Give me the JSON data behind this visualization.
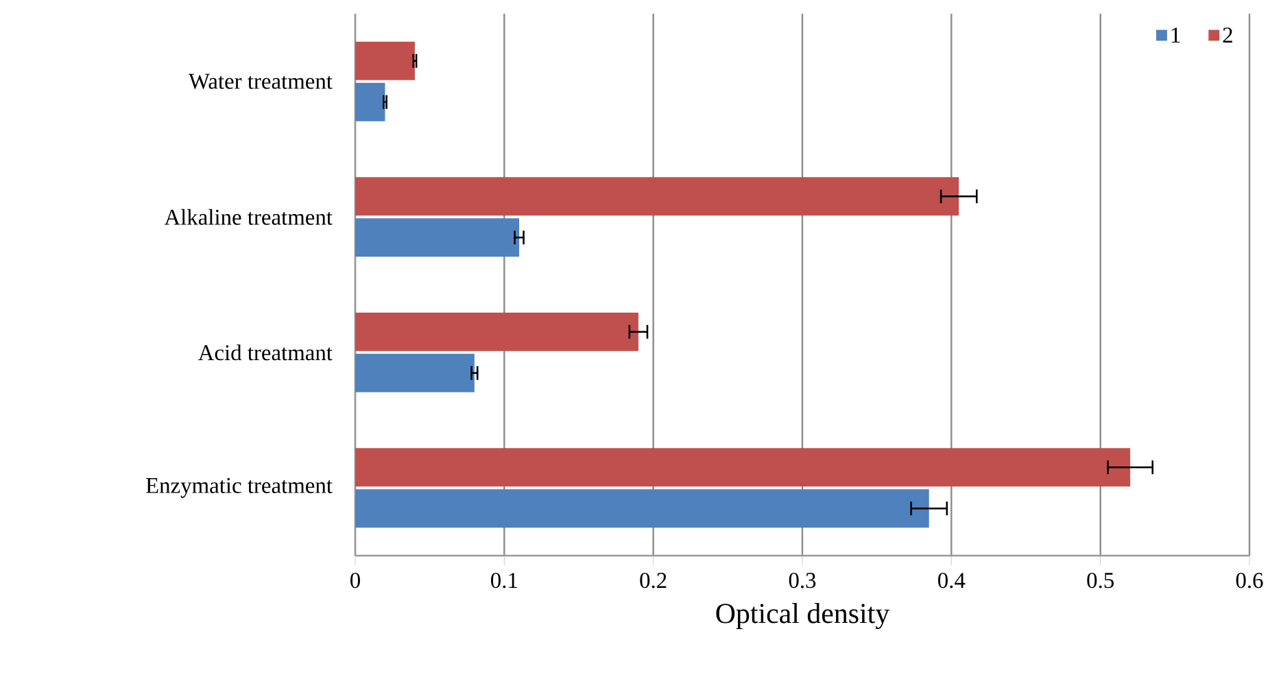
{
  "chart_data": {
    "type": "bar",
    "orientation": "horizontal",
    "xlabel": "Optical density",
    "categories": [
      "Water treatment",
      "Alkaline treatment",
      "Acid treatmant",
      "Enzymatic treatment"
    ],
    "series": [
      {
        "name": "1",
        "color": "#4f81bd",
        "values": [
          0.02,
          0.11,
          0.08,
          0.385
        ],
        "errors": [
          0.001,
          0.003,
          0.002,
          0.012
        ]
      },
      {
        "name": "2",
        "color": "#c0504d",
        "values": [
          0.04,
          0.405,
          0.19,
          0.52
        ],
        "errors": [
          0.001,
          0.012,
          0.006,
          0.015
        ]
      }
    ],
    "xlim": [
      0,
      0.6
    ],
    "xticks": [
      0,
      0.1,
      0.2,
      0.3,
      0.4,
      0.5,
      0.6
    ],
    "grid": "x",
    "legend": "top right"
  }
}
